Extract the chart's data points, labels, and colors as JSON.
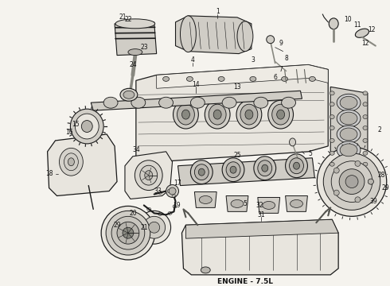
{
  "title": "ENGINE - 7.5L",
  "title_fontsize": 6.5,
  "bg_color": "#f5f3ee",
  "fig_width": 4.9,
  "fig_height": 3.6,
  "dpi": 100,
  "line_color": "#1a1a1a",
  "fill_light": "#e8e5de",
  "fill_mid": "#d0cdc6",
  "fill_dark": "#b8b5ae"
}
